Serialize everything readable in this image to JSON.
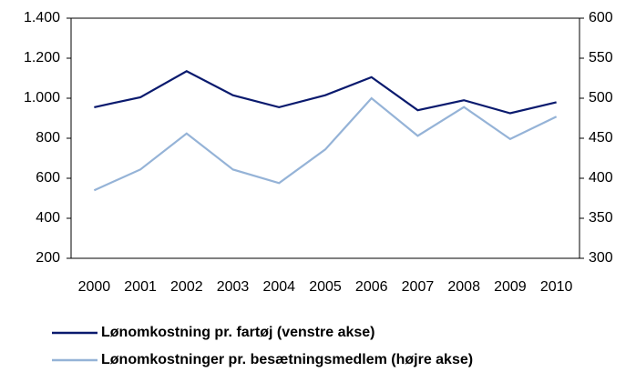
{
  "chart_data": {
    "type": "line",
    "categories": [
      "2000",
      "2001",
      "2002",
      "2003",
      "2004",
      "2005",
      "2006",
      "2007",
      "2008",
      "2009",
      "2010"
    ],
    "series": [
      {
        "name": "Lønomkostning pr. fartøj (venstre akse)",
        "color": "#0a1a6e",
        "values": [
          955,
          1005,
          1135,
          1015,
          955,
          1015,
          1105,
          940,
          990,
          925,
          980
        ]
      },
      {
        "name": "Lønomkostninger pr. besætningsmedlem (højre akse)",
        "color": "#95b3d7",
        "axis": "y2",
        "values": [
          385,
          411,
          456,
          411,
          394,
          436,
          500,
          453,
          489,
          449,
          477
        ]
      }
    ],
    "ylim": [
      200,
      1400
    ],
    "yticks": [
      200,
      400,
      600,
      800,
      {
        "value": 1000,
        "label": "1.000"
      },
      {
        "value": 1200,
        "label": "1.200"
      },
      {
        "value": 1400,
        "label": "1.400"
      }
    ],
    "y2lim": [
      300,
      600
    ],
    "y2ticks": [
      300,
      350,
      400,
      450,
      500,
      550,
      600
    ],
    "grid": false,
    "legend": "bottom"
  }
}
